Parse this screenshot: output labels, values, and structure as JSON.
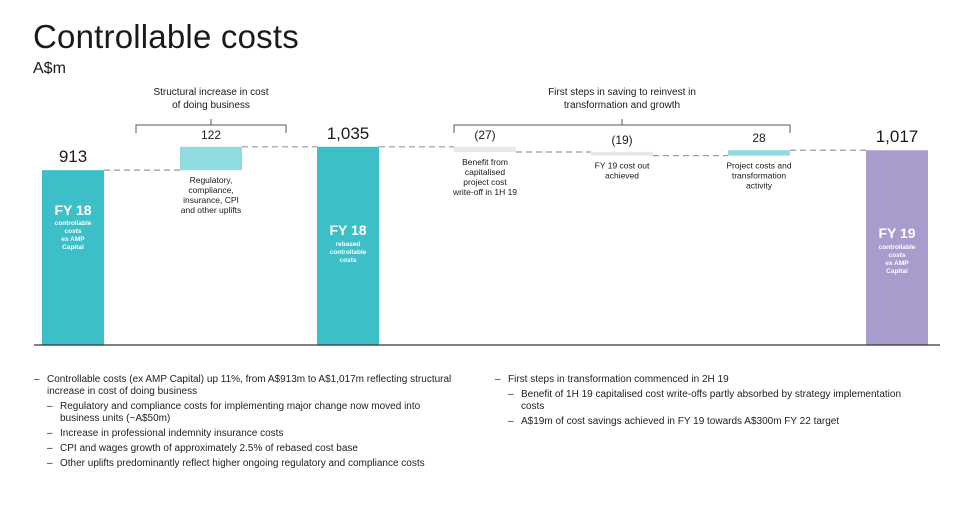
{
  "title": "Controllable costs",
  "unit": "A$m",
  "colors": {
    "teal": "#3dbfc7",
    "light_teal": "#8fdbe0",
    "grey": "#e8e8e8",
    "purple": "#a89ccc",
    "axis": "#333333",
    "connector": "#999999"
  },
  "chart_data": {
    "type": "bar",
    "subtype": "waterfall",
    "title": "Controllable costs",
    "ylabel": "A$m",
    "ylim": [
      0,
      1100
    ],
    "series": [
      {
        "id": "fy18",
        "kind": "total",
        "value": 913,
        "label": "913",
        "bar_title": "FY 18",
        "bar_sub": [
          "controllable",
          "costs",
          "ex AMP",
          "Capital"
        ],
        "color_key": "teal"
      },
      {
        "id": "uplifts",
        "kind": "delta",
        "value": 122,
        "label": "122",
        "caption": [
          "Regulatory,",
          "compliance,",
          "insurance, CPI",
          "and other uplifts"
        ],
        "color_key": "light_teal"
      },
      {
        "id": "fy18rebased",
        "kind": "total",
        "value": 1035,
        "label": "1,035",
        "bar_title": "FY 18",
        "bar_sub": [
          "rebased",
          "controllable",
          "costs"
        ],
        "color_key": "teal"
      },
      {
        "id": "capitalised",
        "kind": "delta",
        "value": -27,
        "label": "(27)",
        "caption": [
          "Benefit from",
          "capitalised",
          "project cost",
          "write-off in 1H 19"
        ],
        "color_key": "grey"
      },
      {
        "id": "costout",
        "kind": "delta",
        "value": -19,
        "label": "(19)",
        "caption": [
          "FY 19 cost out",
          "achieved"
        ],
        "color_key": "grey"
      },
      {
        "id": "project",
        "kind": "delta",
        "value": 28,
        "label": "28",
        "caption": [
          "Project costs and",
          "transformation",
          "activity"
        ],
        "color_key": "light_teal"
      },
      {
        "id": "fy19",
        "kind": "total",
        "value": 1017,
        "label": "1,017",
        "bar_title": "FY 19",
        "bar_sub": [
          "controllable",
          "costs",
          "ex AMP",
          "Capital"
        ],
        "color_key": "purple"
      }
    ],
    "annotations": [
      {
        "id": "structural",
        "lines": [
          "Structural increase in cost",
          "of doing business"
        ],
        "span": [
          "uplifts"
        ]
      },
      {
        "id": "firststeps",
        "lines": [
          "First steps in saving to reinvest in",
          "transformation and growth"
        ],
        "span": [
          "capitalised",
          "project"
        ]
      }
    ]
  },
  "notes": {
    "left": [
      {
        "text": "Controllable costs (ex AMP Capital) up 11%, from A$913m to A$1,017m reflecting structural increase in cost of doing business",
        "sub": [
          "Regulatory and compliance costs for implementing major change now moved into business units (~A$50m)",
          "Increase in professional indemnity insurance costs",
          "CPI and wages growth of approximately 2.5% of rebased cost base",
          "Other uplifts predominantly reflect higher ongoing regulatory and compliance costs"
        ]
      }
    ],
    "right": [
      {
        "text": "First steps in transformation commenced in 2H 19",
        "sub": [
          "Benefit of 1H 19 capitalised cost write-offs partly absorbed by strategy implementation costs",
          "A$19m of cost savings achieved in FY 19 towards A$300m FY 22 target"
        ]
      }
    ]
  }
}
